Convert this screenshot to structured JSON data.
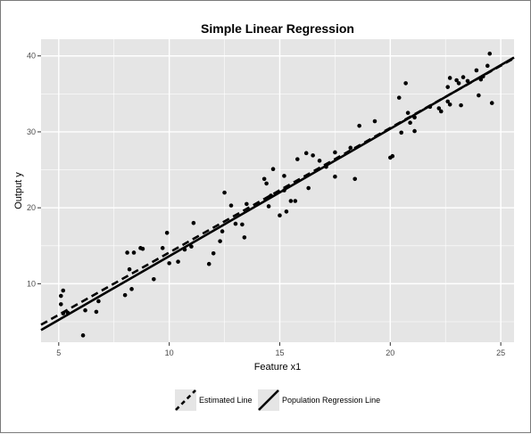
{
  "chart_data": {
    "type": "scatter",
    "title": "Simple Linear Regression",
    "xlabel": "Feature x1",
    "ylabel": "Output y",
    "xlim": [
      4.2,
      25.6
    ],
    "ylim": [
      2.3,
      42.2
    ],
    "xticks": [
      5,
      10,
      15,
      20,
      25
    ],
    "yticks": [
      10,
      20,
      30,
      40
    ],
    "grid": true,
    "legend_position": "bottom",
    "series": [
      {
        "kind": "points",
        "points": [
          [
            5.1,
            8.4
          ],
          [
            5.1,
            7.3
          ],
          [
            5.2,
            9.1
          ],
          [
            5.2,
            6.1
          ],
          [
            5.4,
            6.2
          ],
          [
            6.1,
            3.2
          ],
          [
            6.2,
            6.5
          ],
          [
            6.7,
            6.3
          ],
          [
            6.8,
            7.7
          ],
          [
            8.0,
            8.5
          ],
          [
            8.1,
            14.1
          ],
          [
            8.2,
            11.9
          ],
          [
            8.3,
            9.3
          ],
          [
            8.4,
            14.1
          ],
          [
            8.7,
            14.7
          ],
          [
            8.8,
            14.6
          ],
          [
            9.3,
            10.6
          ],
          [
            9.7,
            14.7
          ],
          [
            9.9,
            16.7
          ],
          [
            10.0,
            12.7
          ],
          [
            10.4,
            12.9
          ],
          [
            10.7,
            14.5
          ],
          [
            11.0,
            14.9
          ],
          [
            11.1,
            18.0
          ],
          [
            11.8,
            12.6
          ],
          [
            12.0,
            14.0
          ],
          [
            12.3,
            15.6
          ],
          [
            12.4,
            16.9
          ],
          [
            12.5,
            22.0
          ],
          [
            12.8,
            20.3
          ],
          [
            13.0,
            17.9
          ],
          [
            13.3,
            17.8
          ],
          [
            13.4,
            16.1
          ],
          [
            13.5,
            20.5
          ],
          [
            14.3,
            23.8
          ],
          [
            14.4,
            23.2
          ],
          [
            14.5,
            20.2
          ],
          [
            14.6,
            21.6
          ],
          [
            14.7,
            25.1
          ],
          [
            15.0,
            19.0
          ],
          [
            15.2,
            22.3
          ],
          [
            15.2,
            24.2
          ],
          [
            15.3,
            19.5
          ],
          [
            15.5,
            20.9
          ],
          [
            15.7,
            20.9
          ],
          [
            15.8,
            26.4
          ],
          [
            16.2,
            27.2
          ],
          [
            16.3,
            22.6
          ],
          [
            16.5,
            26.9
          ],
          [
            16.8,
            26.2
          ],
          [
            17.1,
            25.4
          ],
          [
            17.5,
            27.3
          ],
          [
            17.5,
            24.1
          ],
          [
            18.2,
            27.9
          ],
          [
            18.4,
            23.8
          ],
          [
            18.6,
            30.8
          ],
          [
            19.3,
            31.4
          ],
          [
            20.0,
            26.6
          ],
          [
            20.1,
            26.8
          ],
          [
            20.4,
            34.5
          ],
          [
            20.5,
            29.9
          ],
          [
            20.7,
            36.4
          ],
          [
            20.8,
            32.5
          ],
          [
            20.9,
            31.2
          ],
          [
            21.1,
            31.9
          ],
          [
            21.1,
            30.1
          ],
          [
            21.8,
            33.3
          ],
          [
            22.2,
            33.1
          ],
          [
            22.3,
            32.7
          ],
          [
            22.6,
            35.9
          ],
          [
            22.6,
            34.0
          ],
          [
            22.7,
            37.1
          ],
          [
            22.7,
            33.6
          ],
          [
            23.0,
            36.8
          ],
          [
            23.1,
            36.4
          ],
          [
            23.2,
            33.5
          ],
          [
            23.3,
            37.2
          ],
          [
            23.5,
            36.7
          ],
          [
            23.9,
            38.1
          ],
          [
            24.0,
            34.8
          ],
          [
            24.1,
            36.9
          ],
          [
            24.2,
            37.3
          ],
          [
            24.4,
            38.7
          ],
          [
            24.5,
            40.3
          ],
          [
            24.6,
            33.8
          ]
        ]
      },
      {
        "name": "Estimated Line",
        "kind": "line",
        "style": "dashed",
        "x": [
          4.2,
          25.6
        ],
        "y": [
          4.6,
          39.7
        ]
      },
      {
        "name": "Population Regression Line",
        "kind": "line",
        "style": "solid",
        "x": [
          4.2,
          25.6
        ],
        "y": [
          3.9,
          39.8
        ]
      }
    ],
    "colors": {
      "panel": "#e5e5e5",
      "grid": "#ffffff",
      "points": "#000000",
      "lines": "#000000"
    }
  }
}
